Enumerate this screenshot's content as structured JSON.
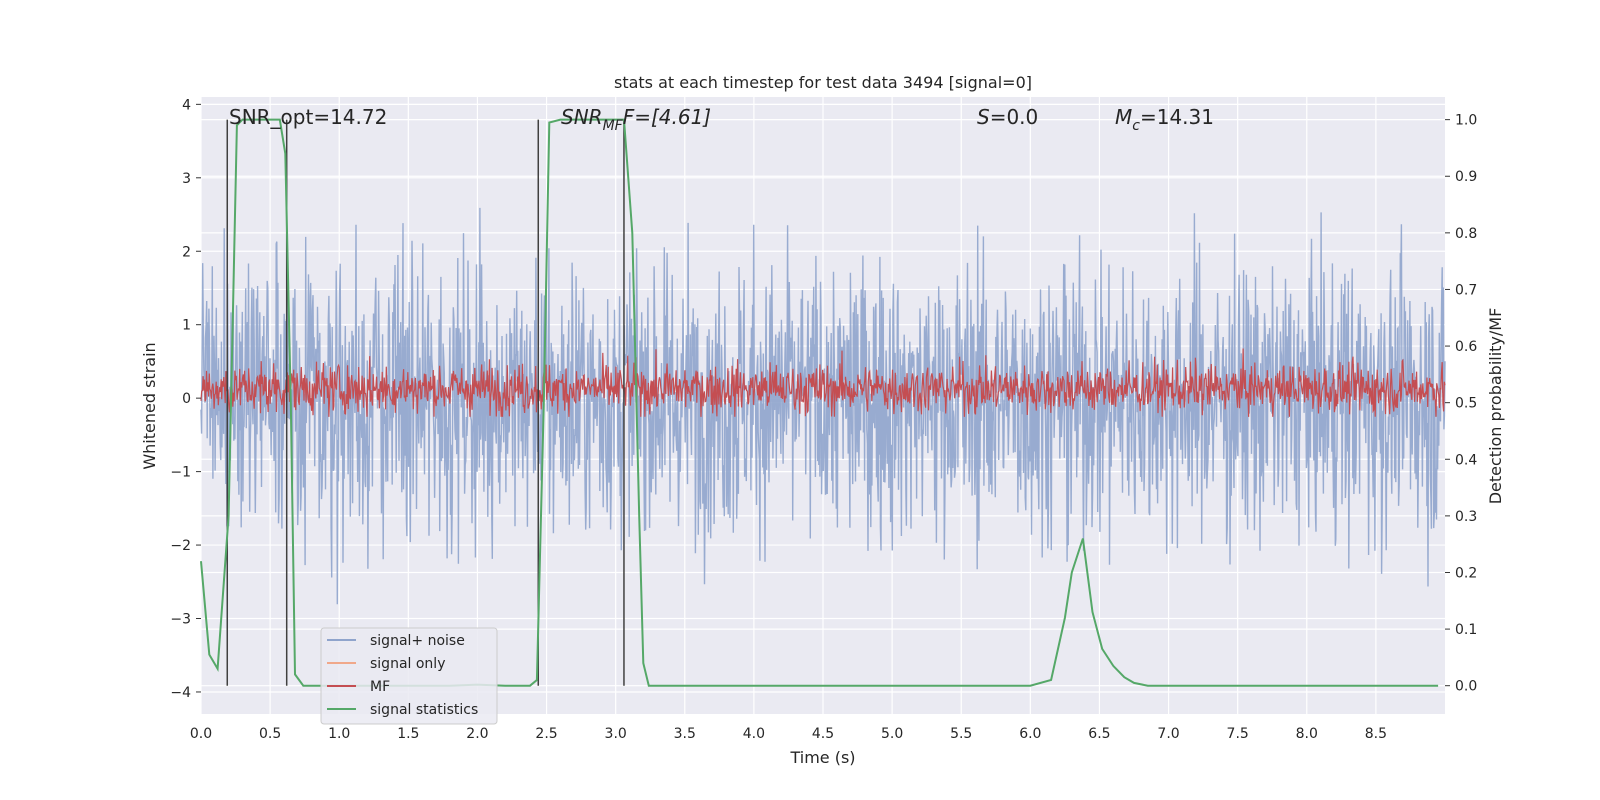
{
  "chart_data": {
    "type": "line",
    "title": "stats at each timestep for test data 3494 [signal=0]",
    "xlabel": "Time (s)",
    "ylabel_left": "Whitened strain",
    "ylabel_right": "Detection probability/MF",
    "xlim": [
      0.0,
      9.0
    ],
    "ylim_left": [
      -4.3,
      4.1
    ],
    "ylim_right": [
      -0.05,
      1.04
    ],
    "x_ticks": [
      "0.0",
      "0.5",
      "1.0",
      "1.5",
      "2.0",
      "2.5",
      "3.0",
      "3.5",
      "4.0",
      "4.5",
      "5.0",
      "5.5",
      "6.0",
      "6.5",
      "7.0",
      "7.5",
      "8.0",
      "8.5"
    ],
    "y_left_ticks": [
      "4",
      "3",
      "2",
      "1",
      "0",
      "−1",
      "−2",
      "−3",
      "−4"
    ],
    "y_right_ticks": [
      "1.0",
      "0.9",
      "0.8",
      "0.7",
      "0.6",
      "0.5",
      "0.4",
      "0.3",
      "0.2",
      "0.1",
      "0.0"
    ],
    "grid": true,
    "legend_position": "lower-left",
    "annotations": {
      "snr_opt": "SNR_opt=14.72",
      "snr_mf_main": "SNR",
      "snr_mf_sub": "MF",
      "snr_mf_tail": "F=[4.61]",
      "s_main": "S",
      "s_tail": "=0.0",
      "mc_main": "M",
      "mc_sub": "c",
      "mc_tail": "=14.31"
    },
    "vertical_markers_s": [
      0.19,
      0.62,
      2.44,
      3.06
    ],
    "series": [
      {
        "name": "signal+ noise",
        "color": "#8fa4cc",
        "axis": "left",
        "envelope": {
          "typical_amplitude": 1.5,
          "max_amplitude": 3.8,
          "samples": 2200
        }
      },
      {
        "name": "signal only",
        "color": "#f0a88a",
        "axis": "left",
        "values": []
      },
      {
        "name": "MF",
        "color": "#c44e52",
        "axis": "right",
        "envelope": {
          "baseline": 0.525,
          "typical_amplitude": 0.04,
          "max_amplitude": 0.1,
          "samples": 1800
        }
      },
      {
        "name": "signal statistics",
        "color": "#55a868",
        "axis": "right",
        "x": [
          0.0,
          0.06,
          0.12,
          0.2,
          0.26,
          0.3,
          0.4,
          0.5,
          0.57,
          0.61,
          0.65,
          0.68,
          0.74,
          0.8,
          0.9,
          1.2,
          1.5,
          1.8,
          2.0,
          2.2,
          2.38,
          2.43,
          2.48,
          2.52,
          2.6,
          2.8,
          3.0,
          3.06,
          3.12,
          3.17,
          3.2,
          3.24,
          3.3,
          4.0,
          5.0,
          6.0,
          6.15,
          6.25,
          6.3,
          6.38,
          6.45,
          6.52,
          6.6,
          6.68,
          6.75,
          6.85,
          7.0,
          8.0,
          8.95
        ],
        "values": [
          0.22,
          0.055,
          0.03,
          0.3,
          0.99,
          1.0,
          1.0,
          1.0,
          1.0,
          0.94,
          0.5,
          0.02,
          0.0,
          0.0,
          0.0,
          0.0,
          0.0,
          0.0,
          0.002,
          0.0,
          0.0,
          0.01,
          0.5,
          0.995,
          1.0,
          1.0,
          1.0,
          1.0,
          0.8,
          0.3,
          0.04,
          0.0,
          0.0,
          0.0,
          0.0,
          0.0,
          0.01,
          0.12,
          0.2,
          0.26,
          0.13,
          0.065,
          0.035,
          0.015,
          0.005,
          0.0,
          0.0,
          0.0,
          0.0
        ]
      }
    ]
  }
}
